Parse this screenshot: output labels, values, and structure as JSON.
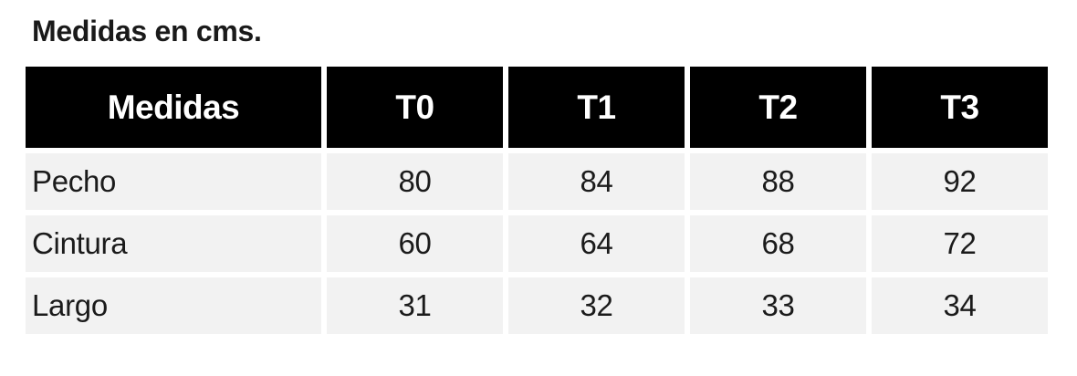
{
  "title": "Medidas en cms.",
  "colors": {
    "header_bg": "#000000",
    "header_text": "#ffffff",
    "row_bg": "#f2f2f2",
    "body_text": "#1b1b1b",
    "title_text": "#1a1a1a",
    "gap": "#ffffff"
  },
  "chart_data": {
    "type": "table",
    "title": "Medidas en cms.",
    "columns": [
      "Medidas",
      "T0",
      "T1",
      "T2",
      "T3"
    ],
    "rows": [
      {
        "label": "Pecho",
        "values": [
          80,
          84,
          88,
          92
        ]
      },
      {
        "label": "Cintura",
        "values": [
          60,
          64,
          68,
          72
        ]
      },
      {
        "label": "Largo",
        "values": [
          31,
          32,
          33,
          34
        ]
      }
    ],
    "layout": {
      "header_style": "solid-black",
      "grid": "white-gaps",
      "value_align": "center",
      "label_align": "left"
    }
  }
}
